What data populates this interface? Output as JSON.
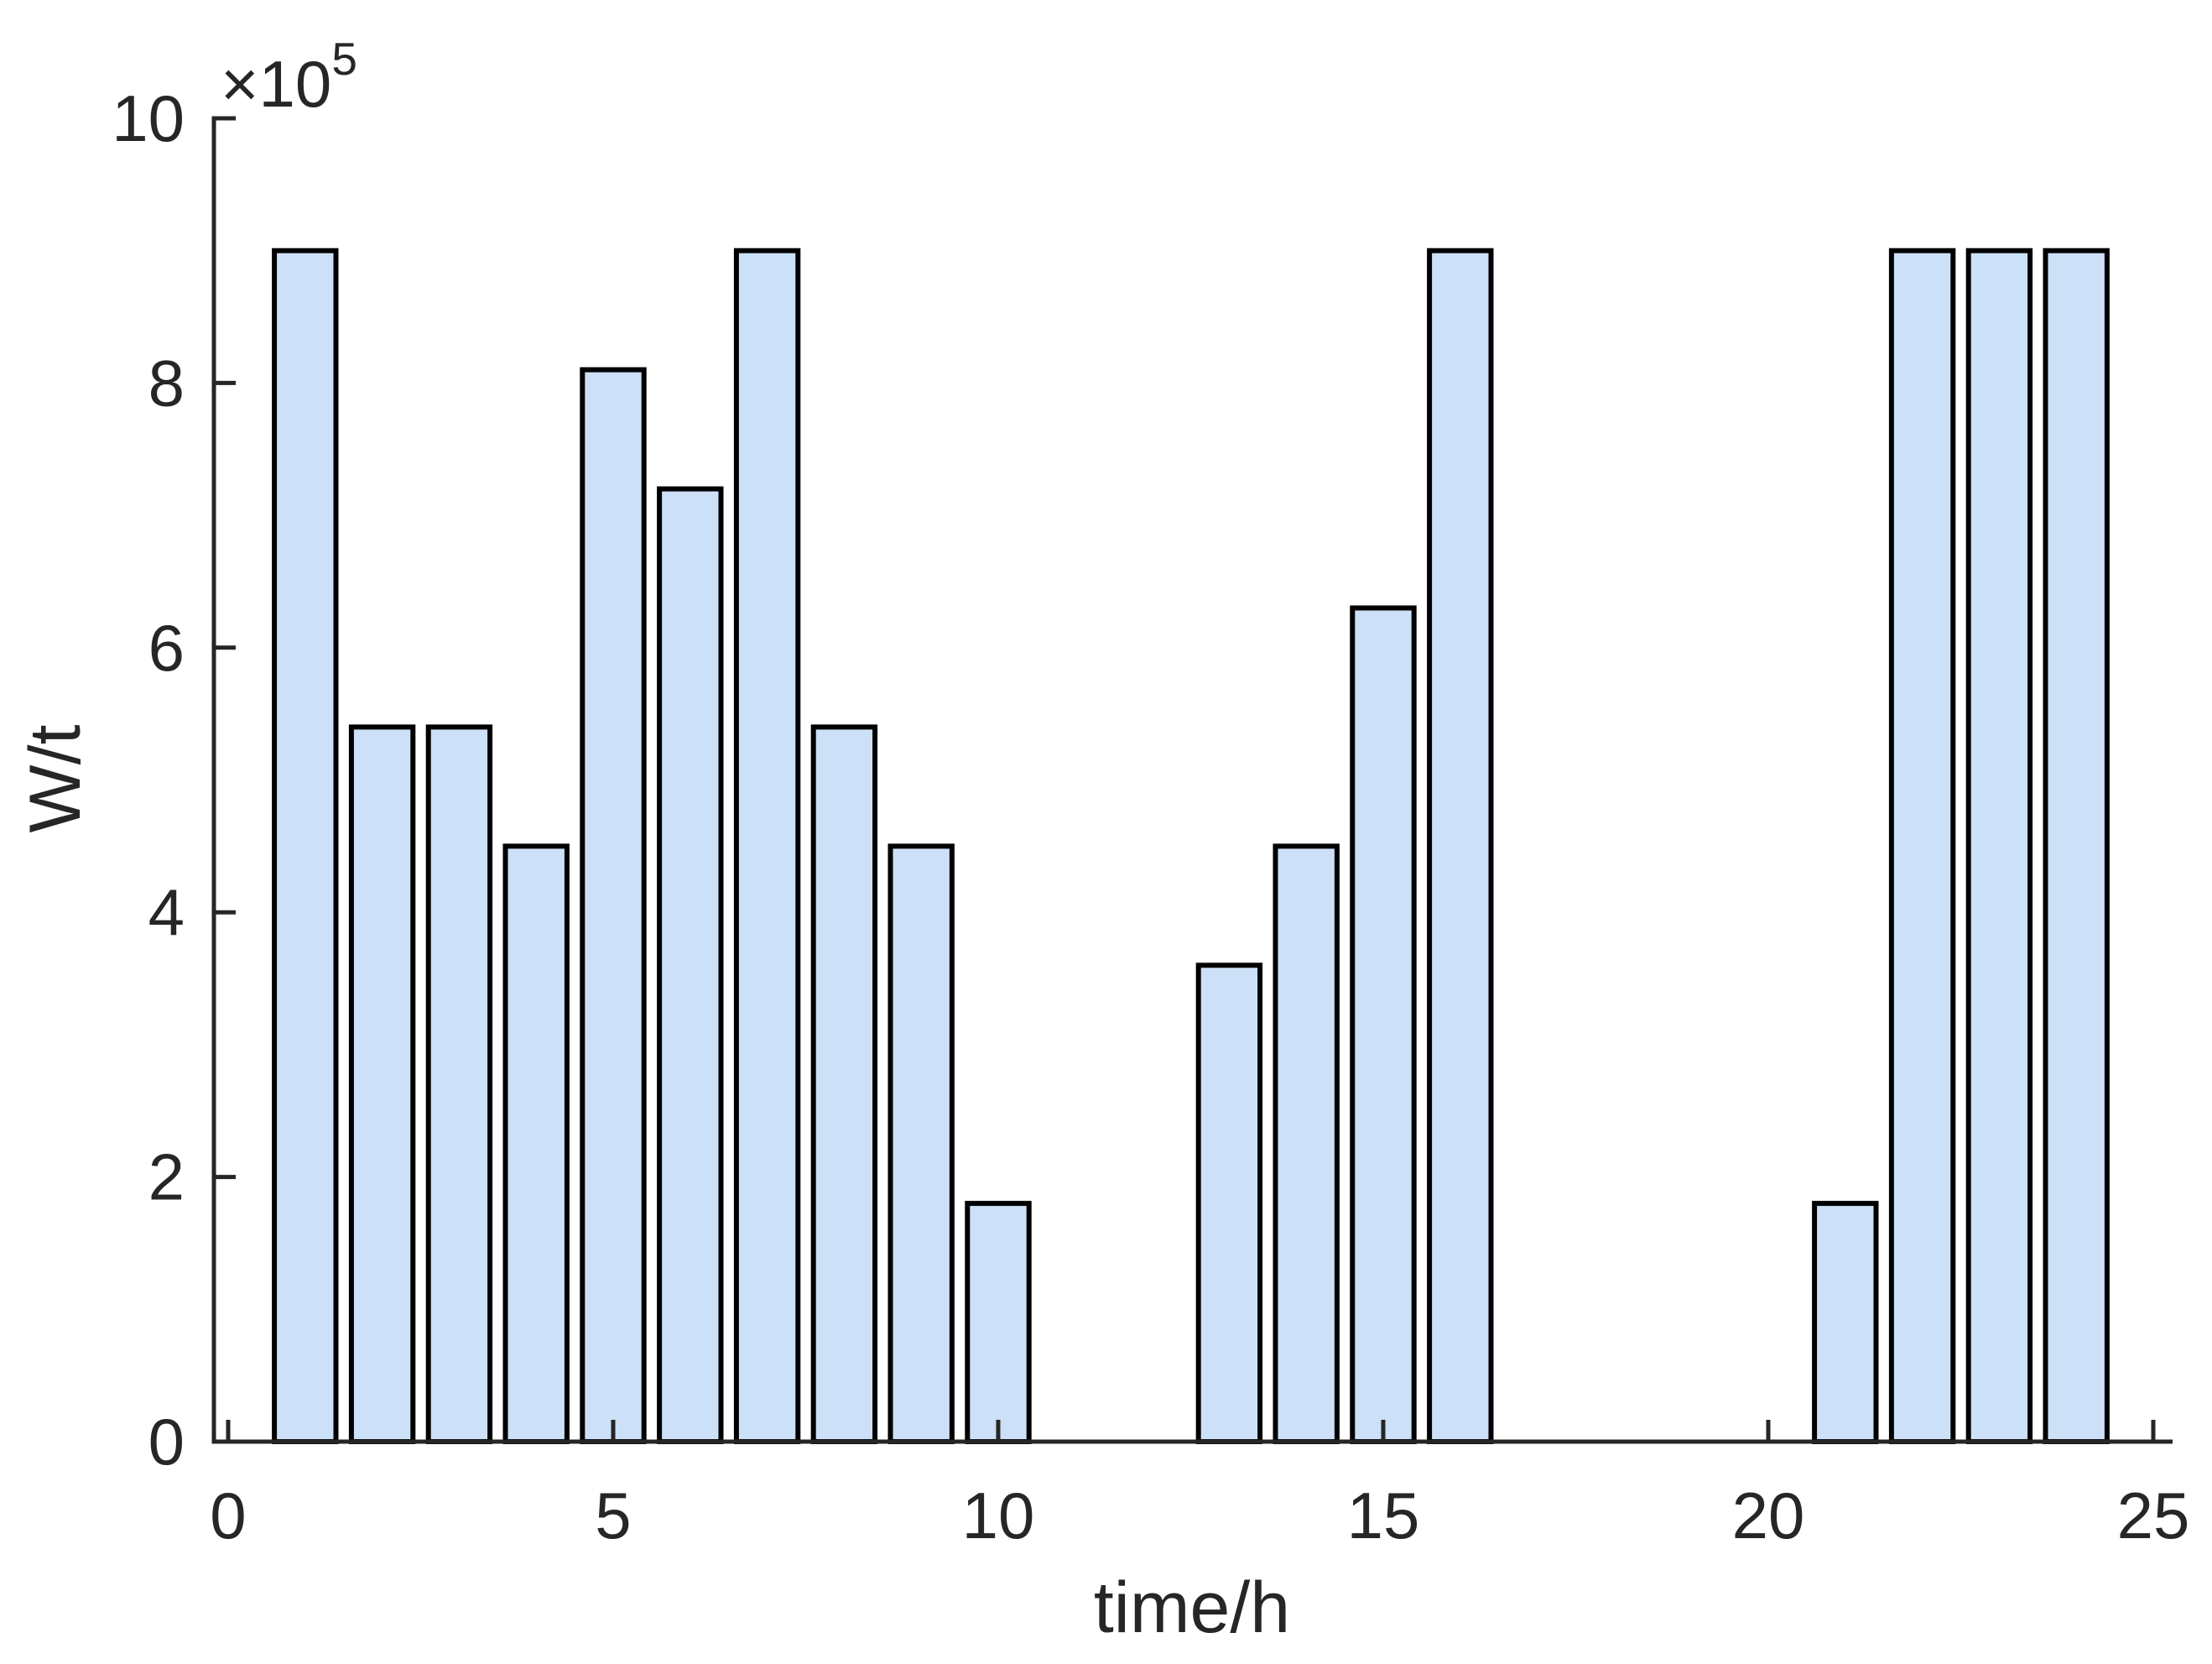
{
  "page": {
    "background": "#ffffff"
  },
  "chart_data": {
    "type": "bar",
    "title": "",
    "xlabel": "time/h",
    "ylabel": "W/t",
    "y_axis_multiplier": {
      "base": "×10",
      "exponent": "5"
    },
    "x": [
      1,
      2,
      3,
      4,
      5,
      6,
      7,
      8,
      9,
      10,
      13,
      14,
      15,
      16,
      21,
      22,
      23,
      24
    ],
    "values_x1e5": [
      9,
      5.4,
      5.4,
      4.5,
      8.1,
      7.2,
      9,
      5.4,
      4.5,
      1.8,
      3.6,
      4.5,
      6.3,
      9,
      1.8,
      9,
      9,
      9
    ],
    "values_absolute": [
      900000,
      540000,
      540000,
      450000,
      810000,
      720000,
      900000,
      540000,
      450000,
      180000,
      360000,
      450000,
      630000,
      900000,
      180000,
      900000,
      900000,
      900000
    ],
    "xlim": [
      0,
      25
    ],
    "ylim_x1e5": [
      0,
      10
    ],
    "x_tick_values": [
      0,
      5,
      10,
      15,
      20,
      25
    ],
    "x_tick_labels": [
      "0",
      "5",
      "10",
      "15",
      "20",
      "25"
    ],
    "y_tick_values_x1e5": [
      0,
      2,
      4,
      6,
      8,
      10
    ],
    "y_tick_labels": [
      "0",
      "2",
      "4",
      "6",
      "8",
      "10"
    ],
    "bar_width_units": 0.8,
    "grid": false,
    "legend": false,
    "axes_box": "left-bottom-only",
    "tick_direction": "in",
    "colors": {
      "bar_fill": "#cce0f7",
      "bar_edge": "#000000",
      "axis": "#262626",
      "text": "#262626",
      "background": "#ffffff"
    }
  }
}
